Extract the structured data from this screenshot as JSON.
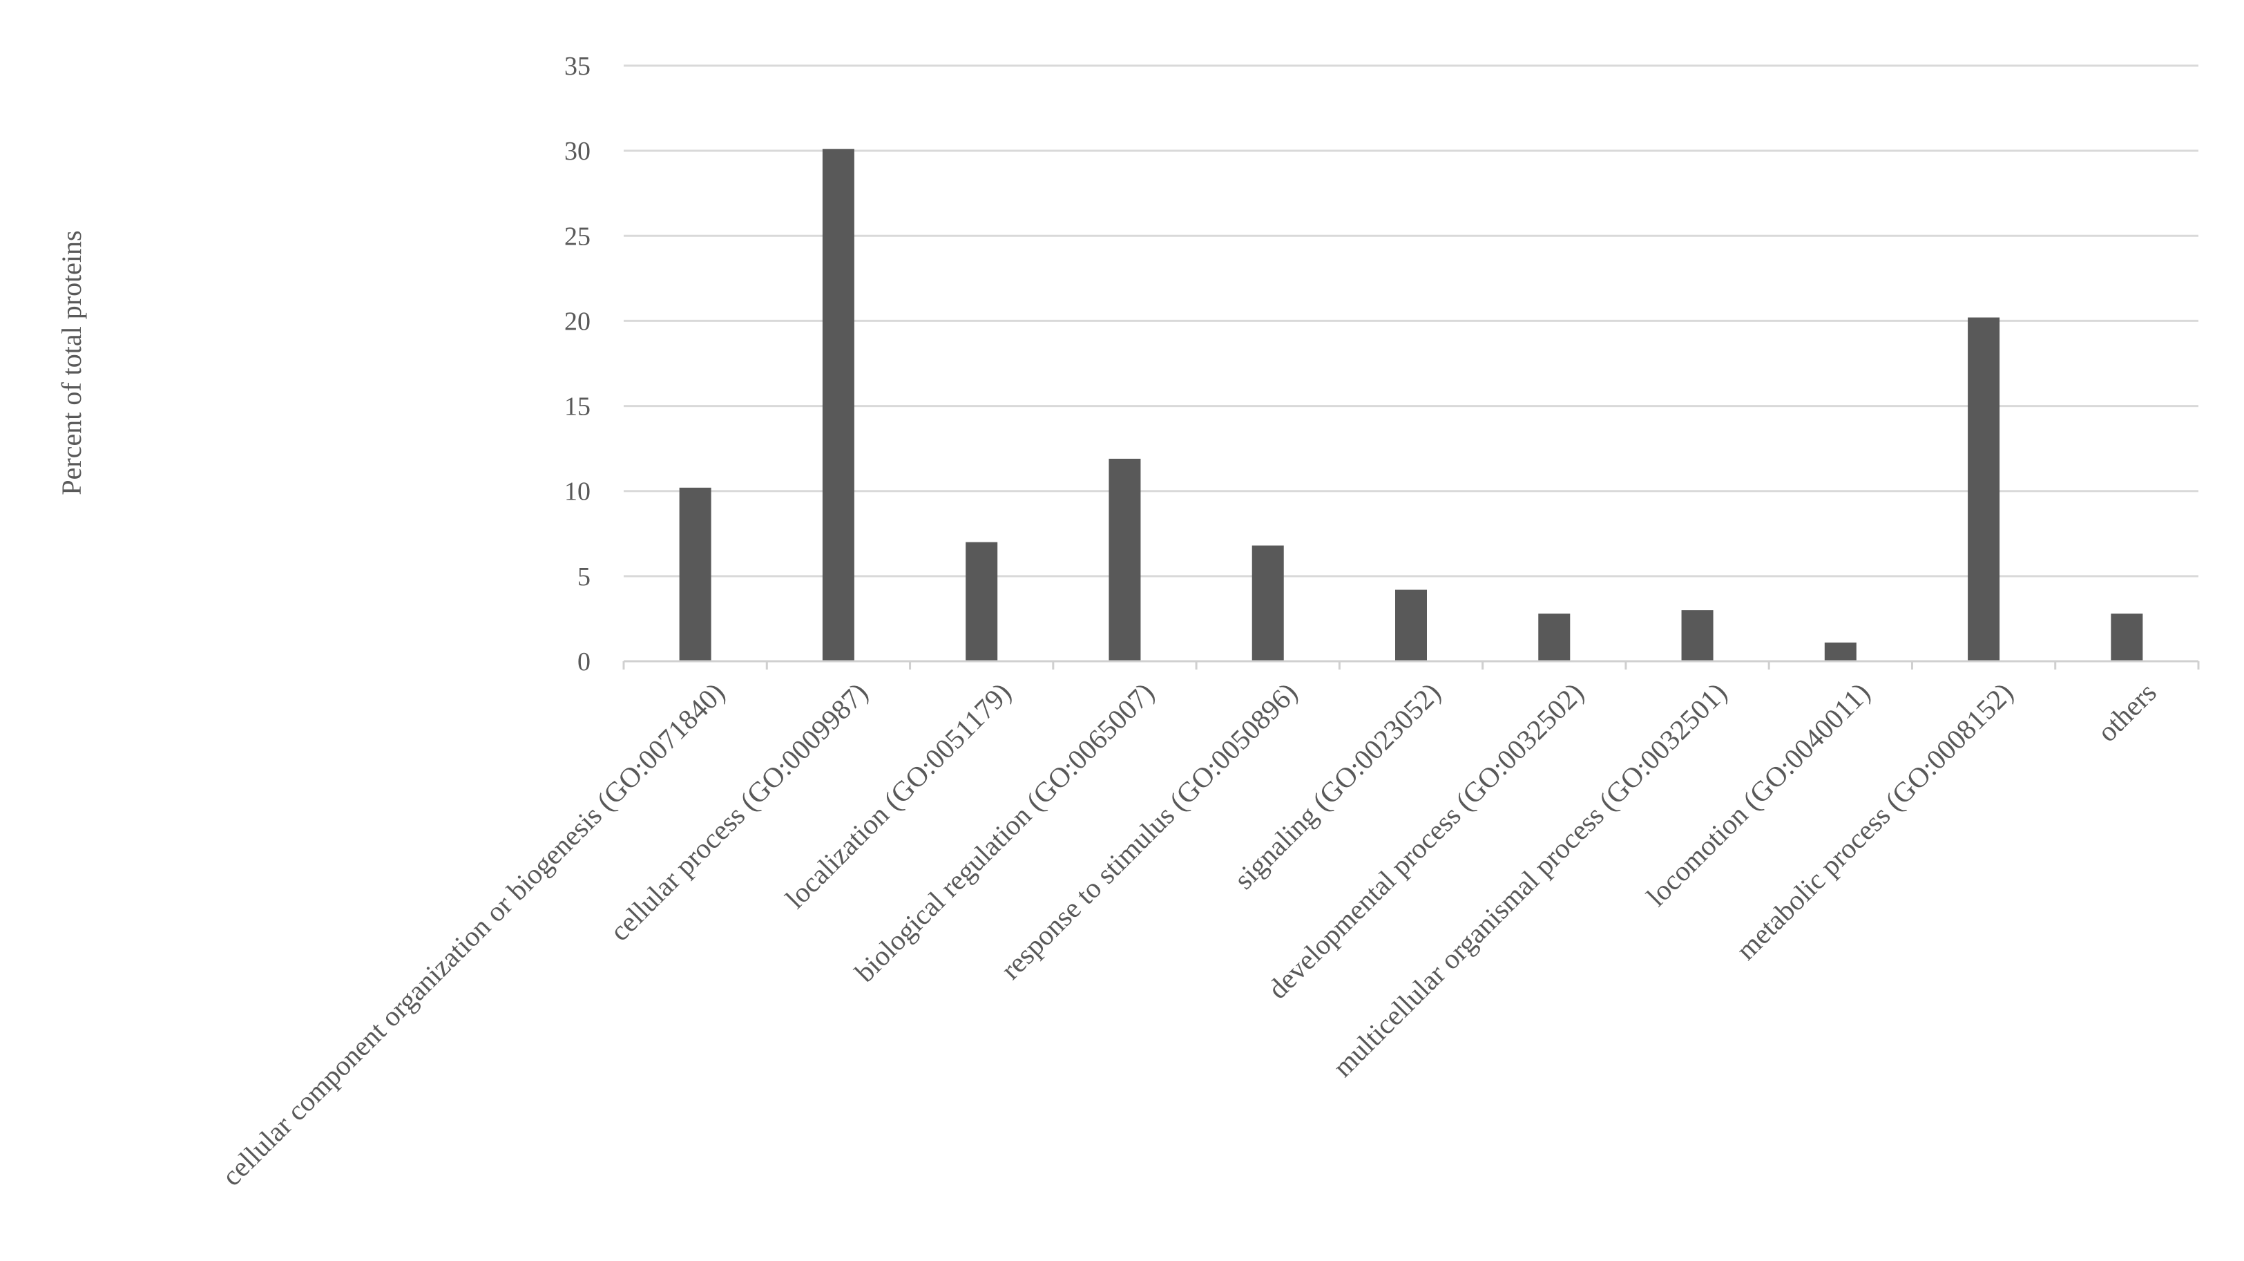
{
  "chart_data": {
    "type": "bar",
    "title": "",
    "xlabel": "",
    "ylabel": "Percent of total proteins",
    "ylim": [
      0,
      35
    ],
    "yticks": [
      0,
      5,
      10,
      15,
      20,
      25,
      30,
      35
    ],
    "grid": true,
    "legend": "none",
    "bar_color": "#595959",
    "grid_color": "#d9d9d9",
    "categories": [
      "cellular component organization or biogenesis (GO:0071840)",
      "cellular process (GO:0009987)",
      "localization (GO:0051179)",
      "biological regulation (GO:0065007)",
      "response to stimulus (GO:0050896)",
      "signaling (GO:0023052)",
      "developmental process (GO:0032502)",
      "multicellular organismal process (GO:0032501)",
      "locomotion (GO:0040011)",
      "metabolic process (GO:0008152)",
      "others"
    ],
    "values": [
      10.2,
      30.1,
      7.0,
      11.9,
      6.8,
      4.2,
      2.8,
      3.0,
      1.1,
      20.2,
      2.8
    ]
  }
}
